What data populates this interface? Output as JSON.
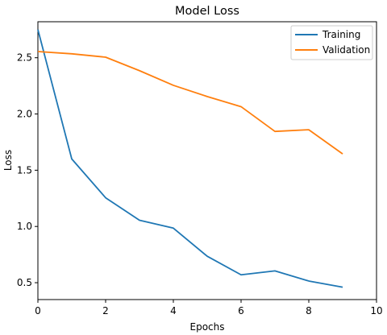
{
  "chart_data": {
    "type": "line",
    "title": "Model Loss",
    "xlabel": "Epochs",
    "ylabel": "Loss",
    "xlim": [
      0,
      10
    ],
    "ylim": [
      0.35,
      2.82
    ],
    "xticks": [
      0,
      2,
      4,
      6,
      8,
      10
    ],
    "yticks": [
      0.5,
      1.0,
      1.5,
      2.0,
      2.5
    ],
    "ytick_labels": [
      "0.5",
      "1.0",
      "1.5",
      "2.0",
      "2.5"
    ],
    "grid": false,
    "legend": "top-right",
    "series": [
      {
        "name": "Training",
        "color": "#1f77b4",
        "x": [
          0,
          1,
          2,
          3,
          4,
          5,
          6,
          7,
          8,
          9
        ],
        "y": [
          2.75,
          1.6,
          1.255,
          1.055,
          0.985,
          0.735,
          0.57,
          0.605,
          0.515,
          0.46
        ]
      },
      {
        "name": "Validation",
        "color": "#ff7f0e",
        "x": [
          0,
          1,
          2,
          3,
          4,
          5,
          6,
          7,
          8,
          9
        ],
        "y": [
          2.555,
          2.535,
          2.505,
          2.385,
          2.255,
          2.155,
          2.065,
          1.845,
          1.86,
          1.645
        ]
      }
    ]
  }
}
